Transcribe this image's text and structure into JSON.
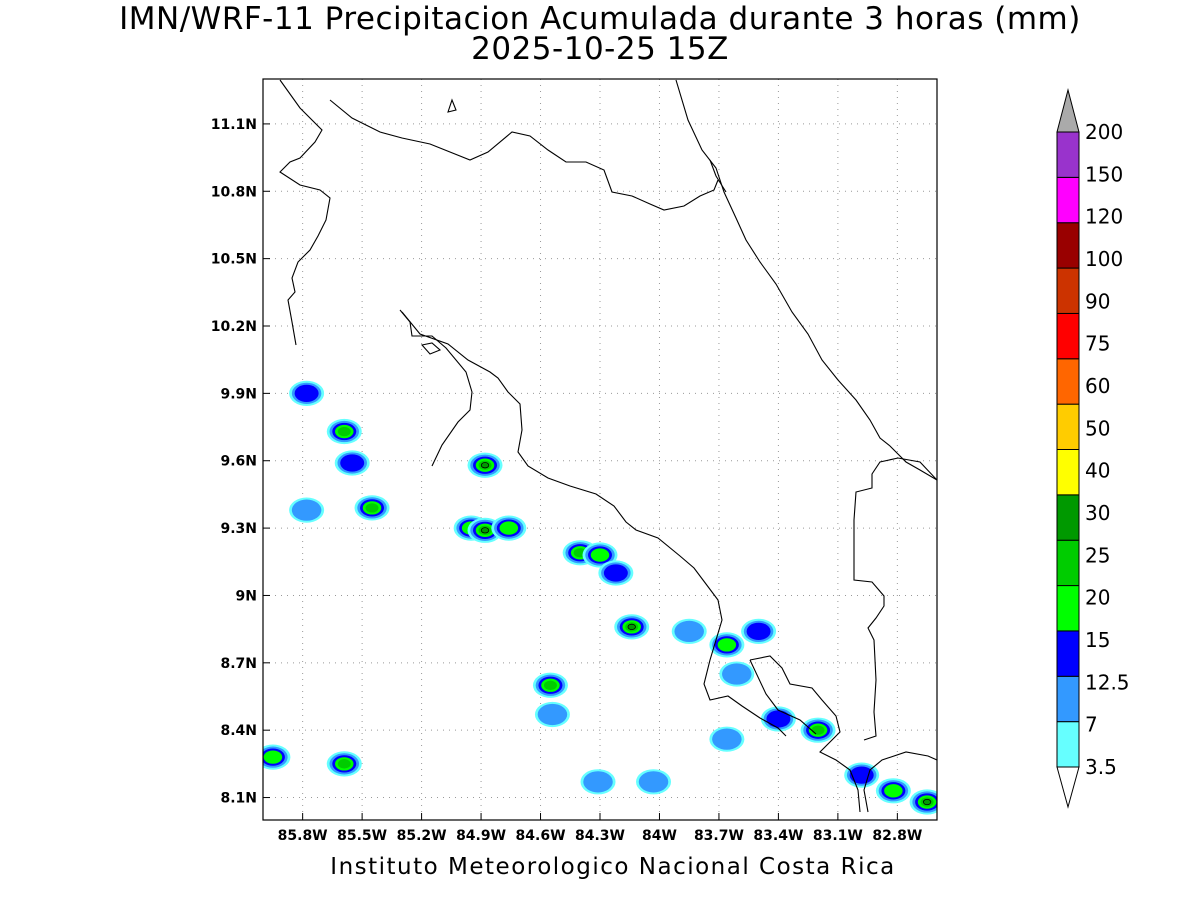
{
  "title": "IMN/WRF-11 Precipitacion Acumulada durante 3 horas (mm)",
  "subtitle": "2025-10-25 15Z",
  "credit": "Instituto Meteorologico Nacional Costa Rica",
  "map": {
    "lon_range": [
      -86.0,
      -82.6
    ],
    "lat_range": [
      8.0,
      11.3
    ],
    "lon_ticks": [
      {
        "lon": -85.8,
        "label": "85.8W"
      },
      {
        "lon": -85.5,
        "label": "85.5W"
      },
      {
        "lon": -85.2,
        "label": "85.2W"
      },
      {
        "lon": -84.9,
        "label": "84.9W"
      },
      {
        "lon": -84.6,
        "label": "84.6W"
      },
      {
        "lon": -84.3,
        "label": "84.3W"
      },
      {
        "lon": -84.0,
        "label": "84W"
      },
      {
        "lon": -83.7,
        "label": "83.7W"
      },
      {
        "lon": -83.4,
        "label": "83.4W"
      },
      {
        "lon": -83.1,
        "label": "83.1W"
      },
      {
        "lon": -82.8,
        "label": "82.8W"
      }
    ],
    "lat_ticks": [
      {
        "lat": 11.1,
        "label": "11.1N"
      },
      {
        "lat": 10.8,
        "label": "10.8N"
      },
      {
        "lat": 10.5,
        "label": "10.5N"
      },
      {
        "lat": 10.2,
        "label": "10.2N"
      },
      {
        "lat": 9.9,
        "label": "9.9N"
      },
      {
        "lat": 9.6,
        "label": "9.6N"
      },
      {
        "lat": 9.3,
        "label": "9.3N"
      },
      {
        "lat": 9.0,
        "label": "9N"
      },
      {
        "lat": 8.7,
        "label": "8.7N"
      },
      {
        "lat": 8.4,
        "label": "8.4N"
      },
      {
        "lat": 8.1,
        "label": "8.1N"
      }
    ],
    "grid": true
  },
  "colorbar": {
    "levels": [
      {
        "label": "3.5",
        "color": "#66ffff"
      },
      {
        "label": "7",
        "color": "#3399ff"
      },
      {
        "label": "12.5",
        "color": "#0000ff"
      },
      {
        "label": "15",
        "color": "#00ff00"
      },
      {
        "label": "20",
        "color": "#00cc00"
      },
      {
        "label": "25",
        "color": "#009900"
      },
      {
        "label": "30",
        "color": "#ffff00"
      },
      {
        "label": "40",
        "color": "#ffcc00"
      },
      {
        "label": "50",
        "color": "#ff6600"
      },
      {
        "label": "60",
        "color": "#ff0000"
      },
      {
        "label": "75",
        "color": "#cc3300"
      },
      {
        "label": "90",
        "color": "#990000"
      },
      {
        "label": "100",
        "color": "#ff00ff"
      },
      {
        "label": "120",
        "color": "#9933cc"
      },
      {
        "label": "150",
        "color": "#f4f4f4"
      },
      {
        "label": "200",
        "color": "#aaaaaa"
      }
    ]
  },
  "precip_cells": [
    {
      "lon": -85.95,
      "lat": 8.28,
      "level": 3
    },
    {
      "lon": -85.59,
      "lat": 8.25,
      "level": 4
    },
    {
      "lon": -85.59,
      "lat": 9.73,
      "level": 4
    },
    {
      "lon": -85.55,
      "lat": 9.59,
      "level": 2
    },
    {
      "lon": -85.45,
      "lat": 9.39,
      "level": 4
    },
    {
      "lon": -85.78,
      "lat": 9.38,
      "level": 1
    },
    {
      "lon": -85.78,
      "lat": 9.9,
      "level": 2
    },
    {
      "lon": -84.88,
      "lat": 9.58,
      "level": 6
    },
    {
      "lon": -84.95,
      "lat": 9.3,
      "level": 3
    },
    {
      "lon": -84.88,
      "lat": 9.29,
      "level": 6
    },
    {
      "lon": -84.76,
      "lat": 9.3,
      "level": 3
    },
    {
      "lon": -84.4,
      "lat": 9.19,
      "level": 4
    },
    {
      "lon": -84.3,
      "lat": 9.18,
      "level": 3
    },
    {
      "lon": -84.22,
      "lat": 9.1,
      "level": 2
    },
    {
      "lon": -84.14,
      "lat": 8.86,
      "level": 6
    },
    {
      "lon": -84.55,
      "lat": 8.6,
      "level": 4
    },
    {
      "lon": -84.54,
      "lat": 8.47,
      "level": 1
    },
    {
      "lon": -83.85,
      "lat": 8.84,
      "level": 1
    },
    {
      "lon": -83.66,
      "lat": 8.78,
      "level": 3
    },
    {
      "lon": -83.5,
      "lat": 8.84,
      "level": 2
    },
    {
      "lon": -83.4,
      "lat": 8.45,
      "level": 2
    },
    {
      "lon": -83.2,
      "lat": 8.4,
      "level": 4
    },
    {
      "lon": -82.98,
      "lat": 8.2,
      "level": 2
    },
    {
      "lon": -82.82,
      "lat": 8.13,
      "level": 3
    },
    {
      "lon": -82.65,
      "lat": 8.08,
      "level": 6
    },
    {
      "lon": -83.61,
      "lat": 8.65,
      "level": 1
    },
    {
      "lon": -83.66,
      "lat": 8.36,
      "level": 1
    },
    {
      "lon": -84.31,
      "lat": 8.17,
      "level": 1
    },
    {
      "lon": -84.03,
      "lat": 8.17,
      "level": 1
    }
  ]
}
